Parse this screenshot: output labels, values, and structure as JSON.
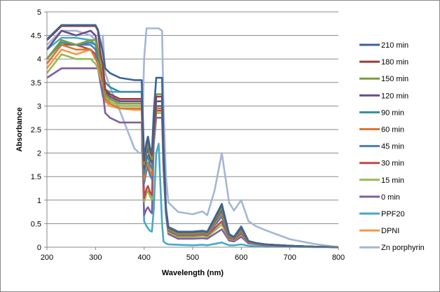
{
  "chart_data": {
    "type": "line",
    "title": "",
    "xlabel": "Wavelength (nm)",
    "ylabel": "Absorbance",
    "xlim": [
      200,
      800
    ],
    "ylim": [
      0,
      5
    ],
    "xticks": [
      200,
      300,
      400,
      500,
      600,
      700,
      800
    ],
    "yticks": [
      0,
      0.5,
      1,
      1.5,
      2,
      2.5,
      3,
      3.5,
      4,
      4.5,
      5
    ],
    "ytick_labels": [
      "0",
      "0.5",
      "1",
      "1.5",
      "2",
      "2.5",
      "3",
      "3.5",
      "4",
      "4.5",
      "5"
    ],
    "xtick_labels": [
      "200",
      "300",
      "400",
      "500",
      "600",
      "700",
      "800"
    ],
    "grid": "horizontal",
    "legend_position": "right",
    "x": [
      200,
      230,
      260,
      290,
      300,
      305,
      310,
      315,
      320,
      330,
      350,
      380,
      390,
      395,
      400,
      405,
      408,
      412,
      416,
      420,
      425,
      430,
      437,
      440,
      445,
      450,
      470,
      500,
      520,
      530,
      545,
      560,
      575,
      585,
      600,
      615,
      630,
      650,
      700,
      750,
      800
    ],
    "series": [
      {
        "name": "210 min",
        "color": "#3b6496",
        "values": [
          4.42,
          4.72,
          4.72,
          4.72,
          4.72,
          4.62,
          4.36,
          4.16,
          3.8,
          3.7,
          3.6,
          3.55,
          3.55,
          3.55,
          1.88,
          2.23,
          2.35,
          2.12,
          2.0,
          2.88,
          3.6,
          3.6,
          3.6,
          2.16,
          0.83,
          0.43,
          0.33,
          0.33,
          0.35,
          0.33,
          0.62,
          0.92,
          0.28,
          0.22,
          0.44,
          0.13,
          0.09,
          0.06,
          0.03,
          0.01,
          0
        ]
      },
      {
        "name": "180 min",
        "color": "#9e3b38",
        "values": [
          4.4,
          4.7,
          4.7,
          4.7,
          4.7,
          4.6,
          4.1,
          3.9,
          3.35,
          3.25,
          3.15,
          3.15,
          3.15,
          3.15,
          1.84,
          2.19,
          2.3,
          2.07,
          1.96,
          2.56,
          3.2,
          3.2,
          3.2,
          1.92,
          0.82,
          0.42,
          0.32,
          0.32,
          0.34,
          0.32,
          0.61,
          0.9,
          0.27,
          0.21,
          0.42,
          0.13,
          0.09,
          0.06,
          0.03,
          0.01,
          0
        ]
      },
      {
        "name": "150 min",
        "color": "#7e9b3f",
        "values": [
          4.0,
          4.4,
          4.3,
          4.4,
          4.4,
          4.2,
          3.9,
          3.7,
          3.25,
          3.15,
          3.05,
          3.05,
          3.05,
          3.05,
          1.76,
          2.09,
          2.2,
          1.98,
          1.87,
          2.6,
          3.25,
          3.25,
          3.25,
          1.95,
          0.8,
          0.4,
          0.3,
          0.3,
          0.32,
          0.3,
          0.58,
          0.85,
          0.25,
          0.2,
          0.4,
          0.12,
          0.09,
          0.06,
          0.03,
          0.01,
          0
        ]
      },
      {
        "name": "120 min",
        "color": "#664f8a",
        "values": [
          4.2,
          4.6,
          4.5,
          4.6,
          4.5,
          4.2,
          3.9,
          3.6,
          3.3,
          3.2,
          3.1,
          3.1,
          3.1,
          3.1,
          1.68,
          2.0,
          2.1,
          1.89,
          1.79,
          2.48,
          3.1,
          3.1,
          3.1,
          1.86,
          0.8,
          0.4,
          0.3,
          0.3,
          0.32,
          0.3,
          0.56,
          0.82,
          0.25,
          0.2,
          0.4,
          0.12,
          0.09,
          0.06,
          0.03,
          0.01,
          0
        ]
      },
      {
        "name": "90 min",
        "color": "#378d9f",
        "values": [
          4.0,
          4.35,
          4.3,
          4.35,
          4.3,
          4.1,
          3.9,
          3.7,
          3.5,
          3.4,
          3.3,
          3.3,
          3.3,
          3.3,
          1.56,
          1.85,
          1.95,
          1.76,
          1.66,
          2.4,
          3.0,
          3.0,
          3.0,
          1.8,
          0.79,
          0.39,
          0.29,
          0.29,
          0.31,
          0.29,
          0.54,
          0.78,
          0.24,
          0.19,
          0.38,
          0.12,
          0.09,
          0.06,
          0.03,
          0.01,
          0
        ]
      },
      {
        "name": "60 min",
        "color": "#d47a33",
        "values": [
          3.9,
          4.3,
          4.2,
          4.2,
          4.0,
          3.9,
          3.7,
          3.5,
          3.15,
          3.05,
          2.95,
          2.95,
          2.95,
          2.95,
          1.44,
          1.71,
          1.8,
          1.62,
          1.53,
          2.36,
          2.95,
          2.95,
          2.95,
          1.77,
          0.78,
          0.38,
          0.28,
          0.28,
          0.3,
          0.28,
          0.5,
          0.72,
          0.23,
          0.18,
          0.36,
          0.11,
          0.08,
          0.05,
          0.03,
          0.01,
          0
        ]
      },
      {
        "name": "45 min",
        "color": "#4a7ebb",
        "values": [
          4.0,
          4.4,
          4.3,
          4.3,
          4.2,
          4.0,
          3.8,
          3.6,
          3.25,
          3.15,
          3.05,
          3.05,
          3.05,
          3.05,
          1.36,
          1.62,
          1.7,
          1.53,
          1.45,
          2.4,
          3.0,
          3.0,
          3.0,
          1.8,
          0.77,
          0.37,
          0.27,
          0.27,
          0.29,
          0.27,
          0.46,
          0.65,
          0.22,
          0.18,
          0.34,
          0.11,
          0.08,
          0.05,
          0.03,
          0.01,
          0
        ]
      },
      {
        "name": "30 min",
        "color": "#be4b48",
        "values": [
          3.9,
          4.3,
          4.3,
          4.2,
          4.1,
          3.9,
          3.7,
          3.6,
          3.3,
          3.2,
          3.1,
          3.1,
          3.1,
          3.1,
          1.04,
          1.24,
          1.3,
          1.17,
          1.1,
          2.32,
          2.9,
          2.9,
          2.9,
          1.74,
          0.75,
          0.35,
          0.25,
          0.25,
          0.27,
          0.25,
          0.4,
          0.55,
          0.2,
          0.16,
          0.3,
          0.1,
          0.08,
          0.05,
          0.03,
          0.01,
          0
        ]
      },
      {
        "name": "15 min",
        "color": "#98b954",
        "values": [
          3.7,
          4.1,
          4.0,
          4.0,
          3.9,
          3.8,
          3.6,
          3.5,
          3.2,
          3.1,
          3.0,
          3.0,
          3.0,
          3.0,
          0.96,
          1.14,
          1.2,
          1.08,
          1.02,
          2.28,
          2.85,
          2.85,
          2.85,
          1.71,
          0.72,
          0.32,
          0.22,
          0.22,
          0.24,
          0.22,
          0.35,
          0.48,
          0.18,
          0.15,
          0.27,
          0.1,
          0.07,
          0.05,
          0.03,
          0.01,
          0
        ]
      },
      {
        "name": "0 min",
        "color": "#7d60a0",
        "values": [
          3.6,
          3.8,
          3.8,
          3.8,
          3.8,
          3.8,
          3.5,
          3.3,
          2.85,
          2.75,
          2.65,
          2.65,
          2.65,
          2.65,
          0.68,
          0.81,
          0.85,
          0.77,
          0.72,
          2.2,
          2.75,
          2.75,
          2.75,
          1.65,
          0.68,
          0.28,
          0.18,
          0.18,
          0.19,
          0.18,
          0.28,
          0.38,
          0.14,
          0.12,
          0.22,
          0.08,
          0.06,
          0.04,
          0.02,
          0.01,
          0
        ]
      },
      {
        "name": "PPF20",
        "color": "#46aac5",
        "values": [
          4.2,
          4.45,
          4.45,
          4.4,
          4.3,
          4.0,
          3.5,
          3.2,
          3.35,
          3.3,
          3.3,
          3.3,
          3.3,
          3.3,
          0.55,
          0.45,
          0.4,
          0.35,
          0.33,
          0.8,
          2.0,
          2.2,
          0.5,
          0.12,
          0.08,
          0.06,
          0.05,
          0.04,
          0.05,
          0.04,
          0.07,
          0.1,
          0.04,
          0.04,
          0.06,
          0.03,
          0.02,
          0.01,
          0.01,
          0,
          0
        ]
      },
      {
        "name": "DPNI",
        "color": "#f79646",
        "values": [
          3.8,
          4.2,
          4.1,
          4.2,
          4.1,
          3.9,
          3.6,
          3.5,
          3.1,
          3.0,
          2.95,
          2.92,
          2.92,
          2.92,
          1.4,
          1.68,
          1.75,
          1.58,
          1.5,
          2.3,
          2.9,
          2.9,
          2.9,
          1.74,
          0.77,
          0.37,
          0.27,
          0.27,
          0.29,
          0.27,
          0.48,
          0.7,
          0.22,
          0.18,
          0.35,
          0.11,
          0.08,
          0.05,
          0.03,
          0.01,
          0
        ]
      },
      {
        "name": "Zn porphyrin",
        "color": "#a5b6d4",
        "values": [
          4.3,
          4.6,
          4.6,
          4.5,
          4.4,
          4.2,
          3.6,
          4.5,
          3.7,
          3.4,
          2.9,
          2.1,
          2.0,
          2.0,
          4.0,
          4.65,
          4.65,
          4.65,
          4.65,
          4.65,
          4.65,
          4.65,
          4.6,
          3.0,
          1.5,
          0.95,
          0.75,
          0.7,
          0.76,
          0.68,
          1.2,
          2.0,
          0.95,
          0.78,
          1.0,
          0.55,
          0.45,
          0.36,
          0.17,
          0.07,
          0
        ]
      }
    ]
  }
}
